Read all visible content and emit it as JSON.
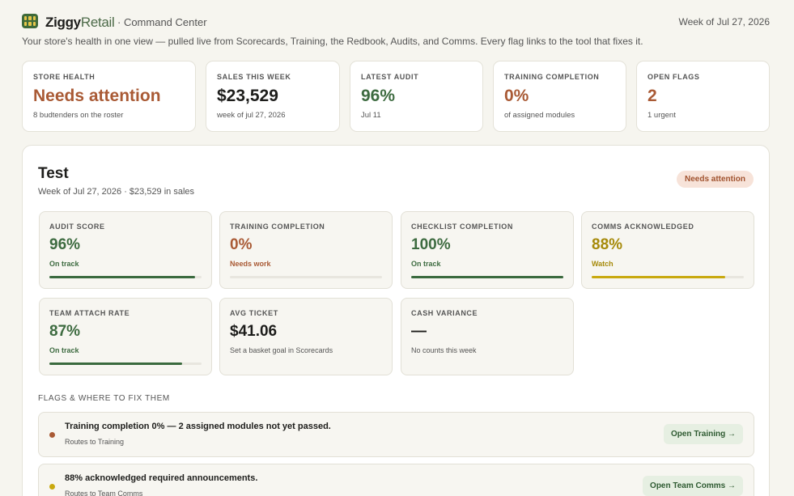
{
  "header": {
    "brand_first": "Ziggy",
    "brand_second": "Retail",
    "section": "· Command Center",
    "week": "Week of Jul 27, 2026",
    "subtitle": "Your store's health in one view — pulled live from Scorecards, Training, the Redbook, Audits, and Comms. Every flag links to the tool that fixes it."
  },
  "kpis": [
    {
      "label": "STORE HEALTH",
      "value": "Needs attention",
      "note": "8 budtenders on the roster"
    },
    {
      "label": "SALES THIS WEEK",
      "value": "$23,529",
      "note": "week of jul 27, 2026"
    },
    {
      "label": "LATEST AUDIT",
      "value": "96%",
      "note": "Jul 11"
    },
    {
      "label": "TRAINING COMPLETION",
      "value": "0%",
      "note": "of assigned modules"
    },
    {
      "label": "OPEN FLAGS",
      "value": "2",
      "note": "1 urgent"
    }
  ],
  "store": {
    "name": "Test",
    "summary": "Week of Jul 27, 2026 · $23,529 in sales",
    "status": "Needs attention"
  },
  "metrics": [
    {
      "label": "AUDIT SCORE",
      "value": 96,
      "value_label": "96%",
      "status": "On track"
    },
    {
      "label": "TRAINING COMPLETION",
      "value": 0,
      "value_label": "0%",
      "status": "Needs work"
    },
    {
      "label": "CHECKLIST COMPLETION",
      "value": 100,
      "value_label": "100%",
      "status": "On track"
    },
    {
      "label": "COMMS ACKNOWLEDGED",
      "value": 88,
      "value_label": "88%",
      "status": "Watch"
    },
    {
      "label": "TEAM ATTACH RATE",
      "value": 87,
      "value_label": "87%",
      "status": "On track"
    },
    {
      "label": "AVG TICKET",
      "value_label": "$41.06",
      "status": "Set a basket goal in Scorecards"
    },
    {
      "label": "CASH VARIANCE",
      "value_label": "—",
      "status": "No counts this week"
    }
  ],
  "flags_heading": "FLAGS & WHERE TO FIX THEM",
  "flags": [
    {
      "title": "Training completion 0% — 2 assigned modules not yet passed.",
      "route": "Routes to Training",
      "action": "Open Training →"
    },
    {
      "title": "88% acknowledged required announcements.",
      "route": "Routes to Team Comms",
      "action": "Open Team Comms →"
    }
  ]
}
